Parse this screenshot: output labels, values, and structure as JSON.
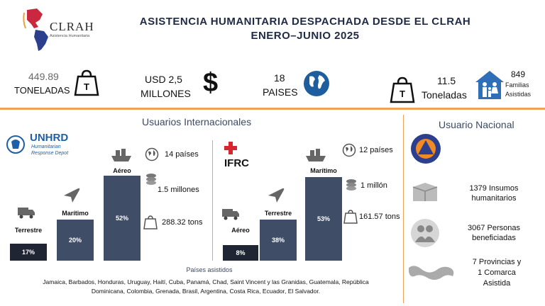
{
  "header": {
    "logo_text": "CLRAH",
    "logo_subtitle": "Asistencia Humanitaria",
    "title_line1": "ASISTENCIA HUMANITARIA DESPACHADA DESDE EL CLRAH",
    "title_line2": "ENERO–JUNIO 2025"
  },
  "stats": {
    "tons_value": "449.89",
    "tons_label": "TONELADAS",
    "usd_line1": "USD 2,5",
    "usd_line2": "MILLONES",
    "countries_value": "18",
    "countries_label": "PAISES",
    "natl_tons_value": "11.5",
    "natl_tons_label": "Toneladas",
    "families_value": "849",
    "families_line1": "Familias",
    "families_line2": "Asistidas"
  },
  "international": {
    "section_title": "Usuarios Internacionales",
    "unhrd": {
      "name": "UNHRD",
      "sub1": "Humanitarian",
      "sub2": "Response Depot",
      "bars": [
        {
          "label": "Terrestre",
          "value": "17%"
        },
        {
          "label": "Marítimo",
          "value": "20%"
        },
        {
          "label": "Aéreo",
          "value": "52%"
        }
      ],
      "countries": "14 países",
      "money": "1.5 millones",
      "tons": "288.32 tons"
    },
    "ifrc": {
      "name": "IFRC",
      "bars": [
        {
          "label": "Aéreo",
          "value": "8%"
        },
        {
          "label": "Terrestre",
          "value": "38%"
        },
        {
          "label": "Marítimo",
          "value": "53%"
        }
      ],
      "countries": "12 países",
      "money": "1 millón",
      "tons": "161.57 tons"
    },
    "assisted_title": "Países asistidos",
    "assisted_line1": "Jamaica, Barbados, Honduras, Uruguay, Haití, Cuba, Panamá, Chad, Saint Vincent y las Granidas, Guatemala, República",
    "assisted_line2": "Dominicana, Colombia, Grenada, Brasil, Argentina, Costa Rica, Ecuador, El Salvador."
  },
  "national": {
    "section_title": "Usuario Nacional",
    "supplies_line1": "1379 Insumos",
    "supplies_line2": "humanitarios",
    "people_line1": "3067 Personas",
    "people_line2": "beneficiadas",
    "prov_line1": "7 Provincias y",
    "prov_line2": "1 Comarca",
    "prov_line3": "Asistida"
  },
  "colors": {
    "bar": "#3f4e66",
    "bar_dark": "#1f2533",
    "divider": "#f0a25a",
    "title": "#1f2a44",
    "ifrc_red": "#d7262e",
    "unhrd_blue": "#1d5fa8"
  }
}
